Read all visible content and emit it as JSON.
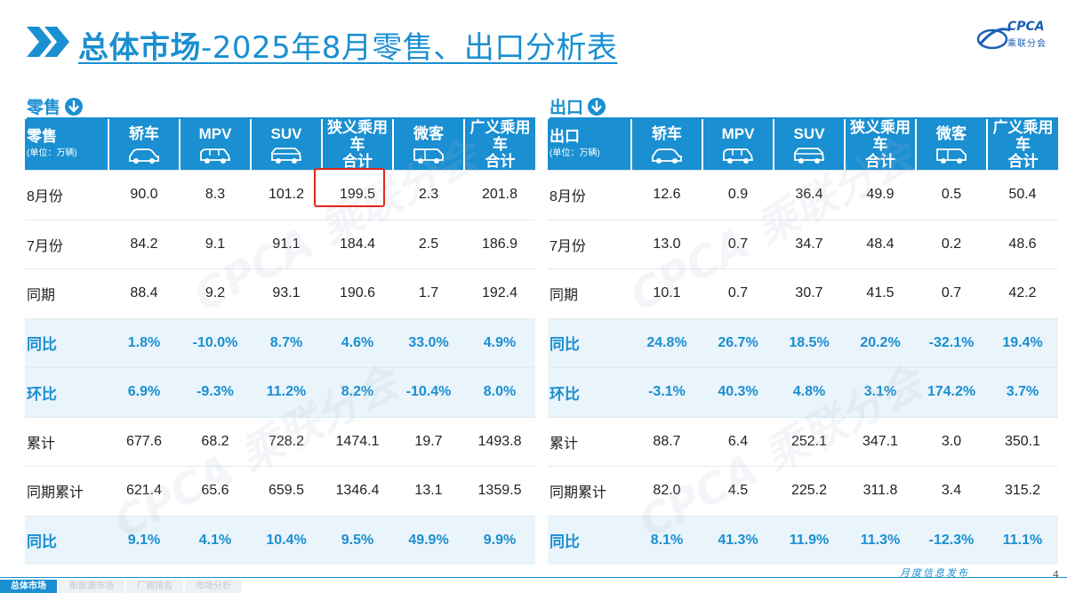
{
  "title": {
    "bold": "总体市场",
    "rest": "-2025年8月零售、出口分析表"
  },
  "logo": {
    "text": "CPCA",
    "sub": "乘联分会"
  },
  "retail": {
    "label": "零售",
    "corner": {
      "main": "零售",
      "unit": "(单位：万辆)"
    },
    "headers": [
      {
        "l1": "轿车",
        "l2": "",
        "icon": "sedan-icon"
      },
      {
        "l1": "MPV",
        "l2": "",
        "icon": "mpv-icon"
      },
      {
        "l1": "SUV",
        "l2": "",
        "icon": "suv-icon"
      },
      {
        "l1": "狭义乘用车",
        "l2": "合计",
        "icon": ""
      },
      {
        "l1": "微客",
        "l2": "",
        "icon": "minivan-icon"
      },
      {
        "l1": "广义乘用车",
        "l2": "合计",
        "icon": ""
      }
    ],
    "rows": [
      {
        "label": "8月份",
        "values": [
          "90.0",
          "8.3",
          "101.2",
          "199.5",
          "2.3",
          "201.8"
        ],
        "hl": false
      },
      {
        "label": "7月份",
        "values": [
          "84.2",
          "9.1",
          "91.1",
          "184.4",
          "2.5",
          "186.9"
        ],
        "hl": false
      },
      {
        "label": "同期",
        "values": [
          "88.4",
          "9.2",
          "93.1",
          "190.6",
          "1.7",
          "192.4"
        ],
        "hl": false
      },
      {
        "label": "同比",
        "values": [
          "1.8%",
          "-10.0%",
          "8.7%",
          "4.6%",
          "33.0%",
          "4.9%"
        ],
        "hl": true
      },
      {
        "label": "环比",
        "values": [
          "6.9%",
          "-9.3%",
          "11.2%",
          "8.2%",
          "-10.4%",
          "8.0%"
        ],
        "hl": true
      },
      {
        "label": "累计",
        "values": [
          "677.6",
          "68.2",
          "728.2",
          "1474.1",
          "19.7",
          "1493.8"
        ],
        "hl": false
      },
      {
        "label": "同期累计",
        "values": [
          "621.4",
          "65.6",
          "659.5",
          "1346.4",
          "13.1",
          "1359.5"
        ],
        "hl": false
      },
      {
        "label": "同比",
        "values": [
          "9.1%",
          "4.1%",
          "10.4%",
          "9.5%",
          "49.9%",
          "9.9%"
        ],
        "hl": true
      }
    ]
  },
  "export": {
    "label": "出口",
    "corner": {
      "main": "出口",
      "unit": "(单位：万辆)"
    },
    "headers": [
      {
        "l1": "轿车",
        "l2": "",
        "icon": "sedan-icon"
      },
      {
        "l1": "MPV",
        "l2": "",
        "icon": "mpv-icon"
      },
      {
        "l1": "SUV",
        "l2": "",
        "icon": "suv-icon"
      },
      {
        "l1": "狭义乘用车",
        "l2": "合计",
        "icon": ""
      },
      {
        "l1": "微客",
        "l2": "",
        "icon": "minivan-icon"
      },
      {
        "l1": "广义乘用车",
        "l2": "合计",
        "icon": ""
      }
    ],
    "rows": [
      {
        "label": "8月份",
        "values": [
          "12.6",
          "0.9",
          "36.4",
          "49.9",
          "0.5",
          "50.4"
        ],
        "hl": false
      },
      {
        "label": "7月份",
        "values": [
          "13.0",
          "0.7",
          "34.7",
          "48.4",
          "0.2",
          "48.6"
        ],
        "hl": false
      },
      {
        "label": "同期",
        "values": [
          "10.1",
          "0.7",
          "30.7",
          "41.5",
          "0.7",
          "42.2"
        ],
        "hl": false
      },
      {
        "label": "同比",
        "values": [
          "24.8%",
          "26.7%",
          "18.5%",
          "20.2%",
          "-32.1%",
          "19.4%"
        ],
        "hl": true
      },
      {
        "label": "环比",
        "values": [
          "-3.1%",
          "40.3%",
          "4.8%",
          "3.1%",
          "174.2%",
          "3.7%"
        ],
        "hl": true
      },
      {
        "label": "累计",
        "values": [
          "88.7",
          "6.4",
          "252.1",
          "347.1",
          "3.0",
          "350.1"
        ],
        "hl": false
      },
      {
        "label": "同期累计",
        "values": [
          "82.0",
          "4.5",
          "225.2",
          "311.8",
          "3.4",
          "315.2"
        ],
        "hl": false
      },
      {
        "label": "同比",
        "values": [
          "8.1%",
          "41.3%",
          "11.9%",
          "11.3%",
          "-12.3%",
          "11.1%"
        ],
        "hl": true
      }
    ]
  },
  "footer": {
    "tabs": [
      "总体市场",
      "新能源市场",
      "厂商排名",
      "市场分析"
    ],
    "text": "月度信息发布",
    "page": "4"
  },
  "colors": {
    "accent": "#1a8fd1",
    "highlight_border": "#e0261b",
    "highlight_row": "#eaf4fb"
  }
}
